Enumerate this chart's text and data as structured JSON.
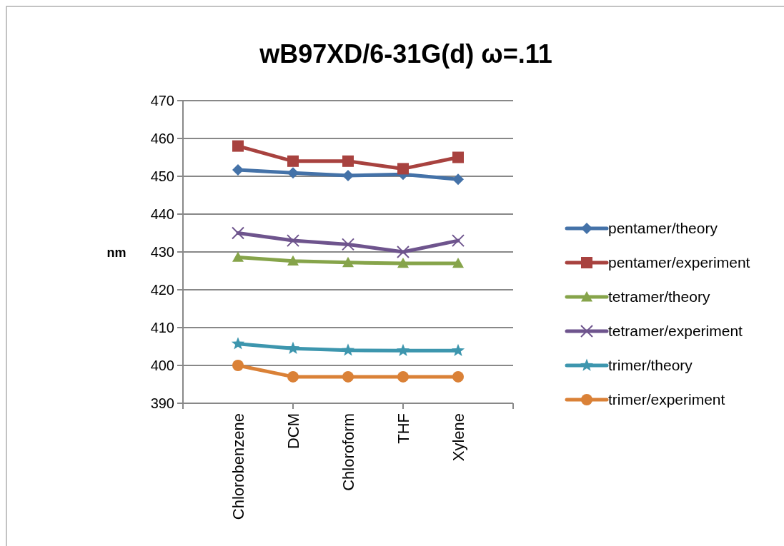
{
  "chart_data": {
    "type": "line",
    "title": "wB97XD/6-31G(d) ω=.11",
    "ylabel": "nm",
    "categories": [
      null,
      "Chlorobenzene",
      "DCM",
      "Chloroform",
      "THF",
      "Xylene",
      null
    ],
    "ylim": [
      390,
      470
    ],
    "yticks": [
      390,
      400,
      410,
      420,
      430,
      440,
      450,
      460,
      470
    ],
    "grid": "y",
    "legend": "right",
    "series": [
      {
        "name": "pentamer/theory",
        "color": "#4472a8",
        "marker": "diamond",
        "values": [
          null,
          451.7,
          450.9,
          450.2,
          450.5,
          449.2,
          null
        ]
      },
      {
        "name": "pentamer/experiment",
        "color": "#a8423f",
        "marker": "square",
        "values": [
          null,
          458,
          454,
          454,
          452,
          455,
          null
        ]
      },
      {
        "name": "tetramer/theory",
        "color": "#86a44a",
        "marker": "triangle",
        "values": [
          null,
          428.6,
          427.6,
          427.2,
          427.0,
          427.0,
          null
        ]
      },
      {
        "name": "tetramer/experiment",
        "color": "#6e548d",
        "marker": "cross",
        "values": [
          null,
          435,
          433,
          432,
          430,
          433,
          null
        ]
      },
      {
        "name": "trimer/theory",
        "color": "#3d96ae",
        "marker": "star",
        "values": [
          null,
          405.7,
          404.5,
          404.0,
          403.9,
          403.9,
          null
        ]
      },
      {
        "name": "trimer/experiment",
        "color": "#da8137",
        "marker": "circle",
        "values": [
          null,
          400,
          397,
          397,
          397,
          397,
          null
        ]
      }
    ]
  }
}
